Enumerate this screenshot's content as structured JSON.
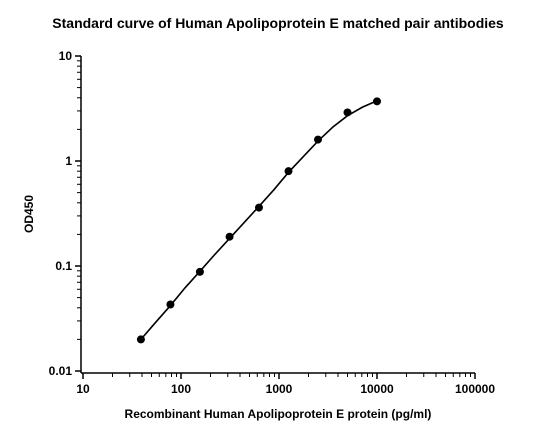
{
  "chart_data": {
    "type": "scatter",
    "title": "Standard curve of Human Apolipoprotein E matched pair antibodies",
    "xlabel": "Recombinant Human Apolipoprotein E protein (pg/ml)",
    "ylabel": "OD450",
    "x_scale": "log",
    "y_scale": "log",
    "xlim": [
      10,
      100000
    ],
    "ylim": [
      0.01,
      10
    ],
    "x_ticks": [
      "10",
      "100",
      "1000",
      "10000",
      "100000"
    ],
    "y_ticks": [
      "0.01",
      "0.1",
      "1",
      "10"
    ],
    "grid": false,
    "legend": "none",
    "series": [
      {
        "x": [
          39,
          78,
          156,
          313,
          625,
          1250,
          2500,
          5000,
          10000
        ],
        "y": [
          0.02,
          0.043,
          0.088,
          0.19,
          0.36,
          0.8,
          1.6,
          2.9,
          3.7
        ]
      }
    ],
    "fit_curve": {
      "x": [
        39,
        55,
        78,
        110,
        156,
        220,
        313,
        442,
        625,
        884,
        1250,
        1768,
        2500,
        3536,
        5000,
        7071,
        10000
      ],
      "y": [
        0.02,
        0.029,
        0.042,
        0.062,
        0.089,
        0.128,
        0.183,
        0.26,
        0.37,
        0.53,
        0.78,
        1.1,
        1.55,
        2.1,
        2.7,
        3.25,
        3.75
      ]
    },
    "colors": {
      "points": "#000000",
      "curve": "#000000",
      "axes": "#000000"
    }
  }
}
